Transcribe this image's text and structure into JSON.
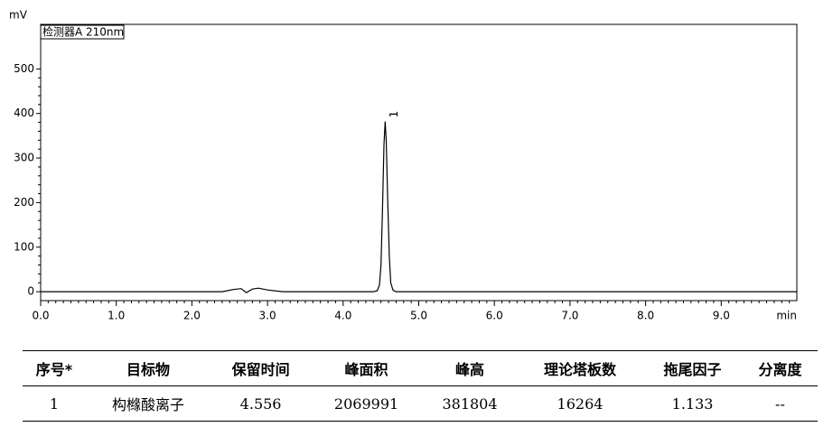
{
  "chart_data": {
    "type": "line",
    "ylabel": "mV",
    "xlabel": "min",
    "xlim": [
      0,
      10
    ],
    "ylim": [
      -20,
      600
    ],
    "xticks": [
      {
        "value": 0,
        "label": "0.0"
      },
      {
        "value": 1,
        "label": "1.0"
      },
      {
        "value": 2,
        "label": "2.0"
      },
      {
        "value": 3,
        "label": "3.0"
      },
      {
        "value": 4,
        "label": "4.0"
      },
      {
        "value": 5,
        "label": "5.0"
      },
      {
        "value": 6,
        "label": "6.0"
      },
      {
        "value": 7,
        "label": "7.0"
      },
      {
        "value": 8,
        "label": "8.0"
      },
      {
        "value": 9,
        "label": "9.0"
      }
    ],
    "yticks": [
      0,
      100,
      200,
      300,
      400,
      500
    ],
    "annotation": "1",
    "x": [
      0,
      1,
      2,
      2.4,
      2.55,
      2.65,
      2.72,
      2.8,
      2.88,
      3.0,
      3.2,
      4.4,
      4.45,
      4.48,
      4.5,
      4.52,
      4.54,
      4.556,
      4.57,
      4.59,
      4.61,
      4.63,
      4.66,
      4.7,
      5,
      6,
      7,
      8,
      9,
      10
    ],
    "series": [
      {
        "name": "检测器A 210nm",
        "color": "#000000",
        "values": [
          0,
          0,
          0,
          0,
          5,
          7,
          -2,
          6,
          8,
          4,
          0,
          0,
          2,
          15,
          60,
          180,
          330,
          382,
          340,
          200,
          80,
          20,
          3,
          0,
          0,
          0,
          0,
          0,
          0,
          0
        ]
      }
    ]
  },
  "table": {
    "header": [
      "序号*",
      "目标物",
      "保留时间",
      "峰面积",
      "峰高",
      "理论塔板数",
      "拖尾因子",
      "分离度"
    ],
    "rows": [
      [
        "1",
        "构橼酸离子",
        "4.556",
        "2069991",
        "381804",
        "16264",
        "1.133",
        "--"
      ]
    ]
  }
}
